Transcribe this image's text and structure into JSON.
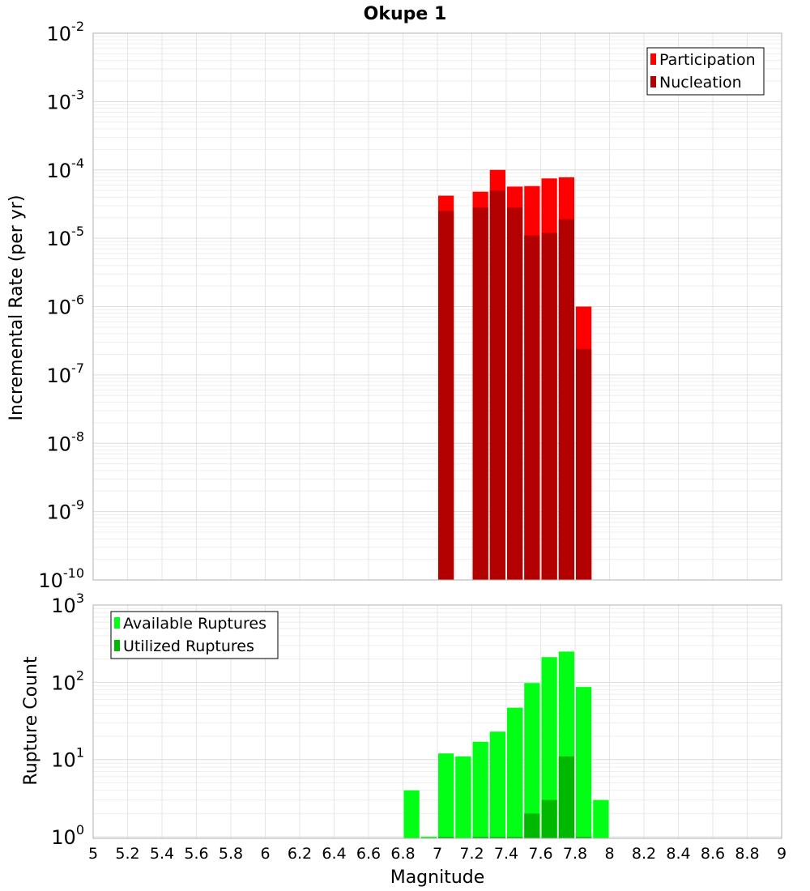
{
  "chart_data": {
    "title": "Okupe 1",
    "xlabel": "Magnitude",
    "xlim": [
      5,
      9
    ],
    "xticks": [
      "5",
      "5.2",
      "5.4",
      "5.6",
      "5.8",
      "6",
      "6.2",
      "6.4",
      "6.6",
      "6.8",
      "7",
      "7.2",
      "7.4",
      "7.6",
      "7.8",
      "8",
      "8.2",
      "8.4",
      "8.6",
      "8.8",
      "9"
    ],
    "bin_width": 0.1,
    "grid": true,
    "panels": [
      {
        "id": "rate",
        "type": "bar",
        "scale": "log",
        "ylabel": "Incremental Rate (per yr)",
        "ylim_exp": [
          -10,
          -2
        ],
        "legend_position": "top-right",
        "series": [
          {
            "name": "Participation",
            "color": "#ff0000",
            "x": [
              7.05,
              7.25,
              7.35,
              7.45,
              7.55,
              7.65,
              7.75,
              7.85
            ],
            "values": [
              4.2e-05,
              4.8e-05,
              0.0001,
              5.7e-05,
              5.8e-05,
              7.5e-05,
              7.8e-05,
              1e-06
            ]
          },
          {
            "name": "Nucleation",
            "color": "#b30000",
            "x": [
              7.05,
              7.25,
              7.35,
              7.45,
              7.55,
              7.65,
              7.75,
              7.85
            ],
            "values": [
              2.5e-05,
              2.8e-05,
              5e-05,
              2.8e-05,
              1.1e-05,
              1.2e-05,
              1.9e-05,
              2.4e-07
            ]
          }
        ]
      },
      {
        "id": "count",
        "type": "bar",
        "scale": "log",
        "ylabel": "Rupture Count",
        "ylim_exp": [
          -0.02,
          3
        ],
        "legend_position": "top-left",
        "series": [
          {
            "name": "Available Ruptures",
            "color": "#00ff14",
            "x": [
              6.85,
              6.95,
              7.05,
              7.15,
              7.25,
              7.35,
              7.45,
              7.55,
              7.65,
              7.75,
              7.85,
              7.95
            ],
            "values": [
              4,
              1,
              12,
              11,
              17,
              23,
              47,
              98,
              212,
              250,
              87,
              3
            ]
          },
          {
            "name": "Utilized Ruptures",
            "color": "#00b800",
            "x": [
              7.05,
              7.25,
              7.35,
              7.45,
              7.55,
              7.65,
              7.75,
              7.85
            ],
            "values": [
              1,
              1,
              1,
              1,
              2,
              3,
              11,
              1
            ]
          }
        ]
      }
    ]
  }
}
